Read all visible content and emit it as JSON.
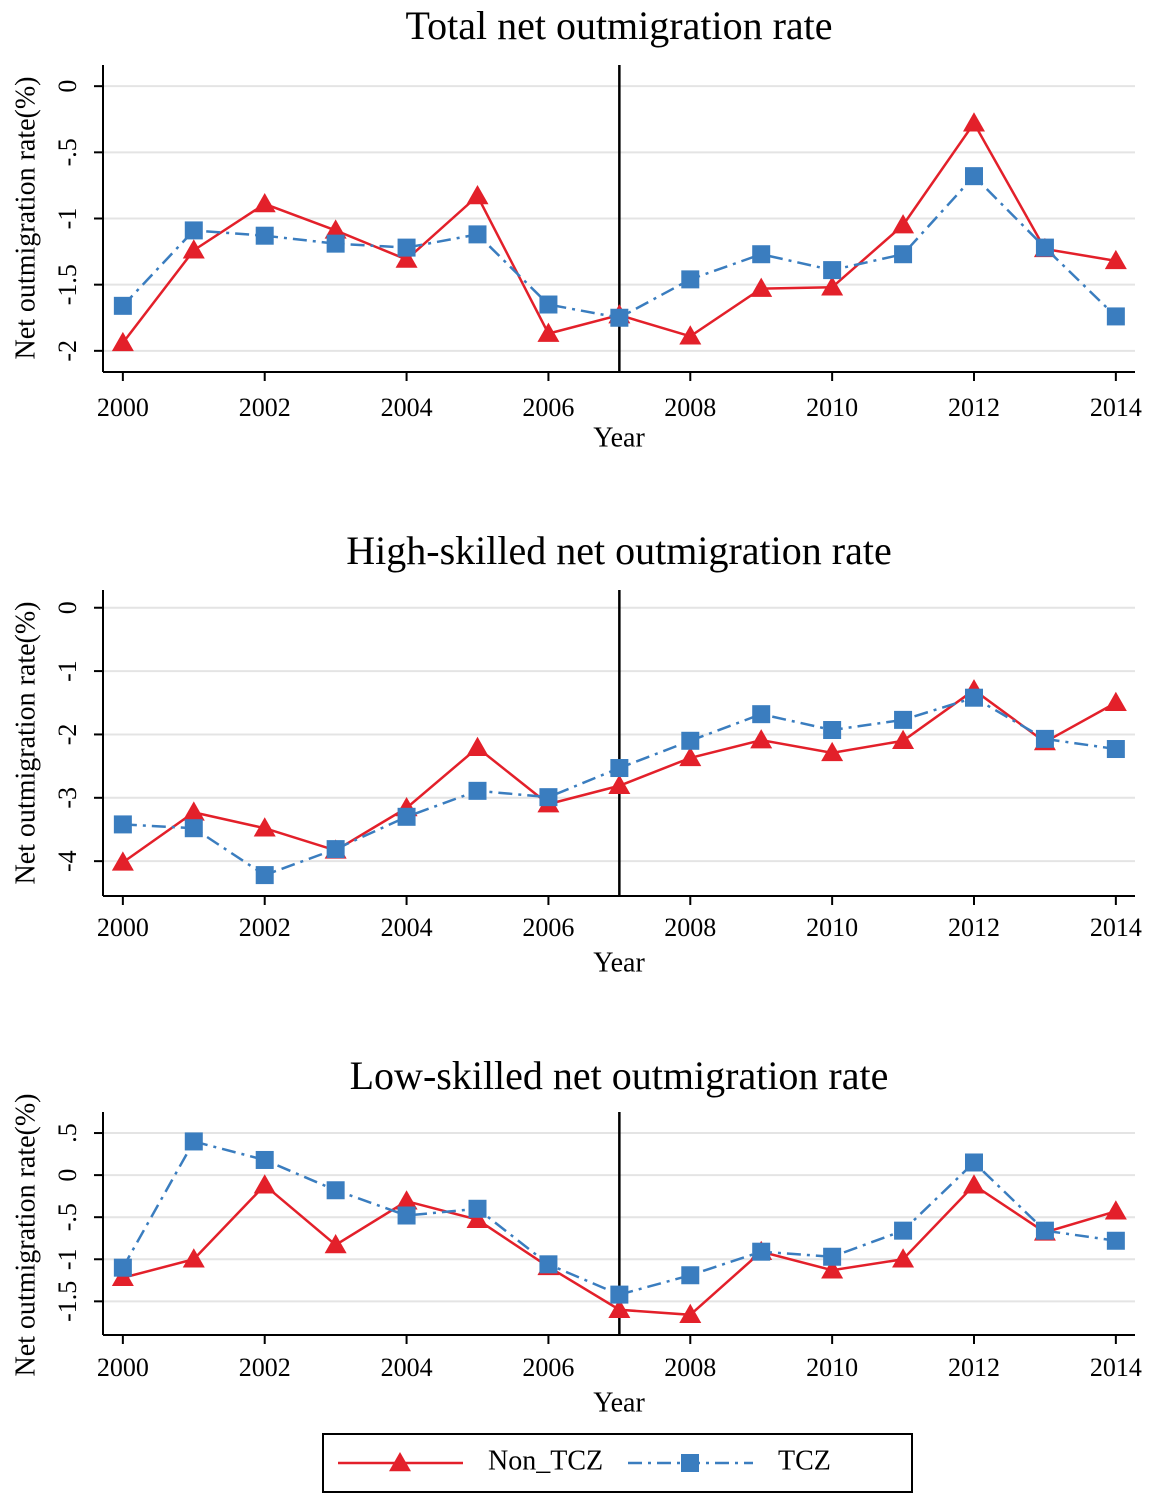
{
  "chart_data": [
    {
      "type": "line",
      "title": "Total net outmigration rate",
      "x_label": "Year",
      "y_label": "Net outmigration rate(%)",
      "x": [
        2000,
        2001,
        2002,
        2003,
        2004,
        2005,
        2006,
        2007,
        2008,
        2009,
        2010,
        2011,
        2012,
        2013,
        2014
      ],
      "series": [
        {
          "name": "Non_TCZ",
          "color": "#e3202a",
          "marker": "triangle",
          "dash": "solid",
          "values": [
            -1.94,
            -1.24,
            -0.89,
            -1.09,
            -1.31,
            -0.83,
            -1.87,
            -1.73,
            -1.89,
            -1.53,
            -1.52,
            -1.05,
            -0.28,
            -1.23,
            -1.32
          ]
        },
        {
          "name": "TCZ",
          "color": "#3a7dbf",
          "marker": "square",
          "dash": "dashdot",
          "values": [
            -1.66,
            -1.09,
            -1.13,
            -1.19,
            -1.22,
            -1.12,
            -1.65,
            -1.75,
            -1.46,
            -1.27,
            -1.39,
            -1.27,
            -0.68,
            -1.22,
            -1.74
          ]
        }
      ],
      "xlim": [
        1999.72,
        2014.27
      ],
      "xticks": [
        2000,
        2002,
        2004,
        2006,
        2008,
        2010,
        2012,
        2014
      ],
      "ylim": [
        -2.16,
        0.16
      ],
      "yticks": [
        0,
        {
          "value": -0.5,
          "label": "-.5"
        },
        -1,
        -1.5,
        -2
      ],
      "grid": true,
      "vline": 2007
    },
    {
      "type": "line",
      "title": "High-skilled net outmigration rate",
      "x_label": "Year",
      "y_label": "Net outmigration rate(%)",
      "x": [
        2000,
        2001,
        2002,
        2003,
        2004,
        2005,
        2006,
        2007,
        2008,
        2009,
        2010,
        2011,
        2012,
        2013,
        2014
      ],
      "series": [
        {
          "name": "Non_TCZ",
          "color": "#e3202a",
          "marker": "triangle",
          "dash": "solid",
          "values": [
            -4.02,
            -3.23,
            -3.48,
            -3.83,
            -3.16,
            -2.21,
            -3.1,
            -2.81,
            -2.37,
            -2.09,
            -2.29,
            -2.1,
            -1.3,
            -2.12,
            -1.5
          ]
        },
        {
          "name": "TCZ",
          "color": "#3a7dbf",
          "marker": "square",
          "dash": "dashdot",
          "values": [
            -3.42,
            -3.48,
            -4.22,
            -3.81,
            -3.3,
            -2.89,
            -2.99,
            -2.53,
            -2.1,
            -1.68,
            -1.93,
            -1.77,
            -1.42,
            -2.07,
            -2.23
          ]
        }
      ],
      "xlim": [
        1999.72,
        2014.27
      ],
      "xticks": [
        2000,
        2002,
        2004,
        2006,
        2008,
        2010,
        2012,
        2014
      ],
      "ylim": [
        -4.55,
        0.28
      ],
      "yticks": [
        0,
        -1,
        -2,
        -3,
        -4
      ],
      "grid": true,
      "vline": 2007
    },
    {
      "type": "line",
      "title": "Low-skilled net outmigration rate",
      "x_label": "Year",
      "y_label": "Net outmigration rate(%)",
      "x": [
        2000,
        2001,
        2002,
        2003,
        2004,
        2005,
        2006,
        2007,
        2008,
        2009,
        2010,
        2011,
        2012,
        2013,
        2014
      ],
      "series": [
        {
          "name": "Non_TCZ",
          "color": "#e3202a",
          "marker": "triangle",
          "dash": "solid",
          "values": [
            -1.22,
            -1.0,
            -0.12,
            -0.83,
            -0.31,
            -0.53,
            -1.09,
            -1.6,
            -1.66,
            -0.91,
            -1.13,
            -1.0,
            -0.12,
            -0.68,
            -0.43
          ]
        },
        {
          "name": "TCZ",
          "color": "#3a7dbf",
          "marker": "square",
          "dash": "dashdot",
          "values": [
            -1.1,
            0.4,
            0.18,
            -0.18,
            -0.48,
            -0.4,
            -1.06,
            -1.42,
            -1.19,
            -0.91,
            -0.97,
            -0.66,
            0.15,
            -0.66,
            -0.78
          ]
        }
      ],
      "xlim": [
        1999.72,
        2014.27
      ],
      "xticks": [
        2000,
        2002,
        2004,
        2006,
        2008,
        2010,
        2012,
        2014
      ],
      "ylim": [
        -1.9,
        0.75
      ],
      "yticks": [
        {
          "value": 0.5,
          "label": ".5"
        },
        0,
        {
          "value": -0.5,
          "label": "-.5"
        },
        -1,
        -1.5
      ],
      "grid": true,
      "vline": 2007
    }
  ]
}
